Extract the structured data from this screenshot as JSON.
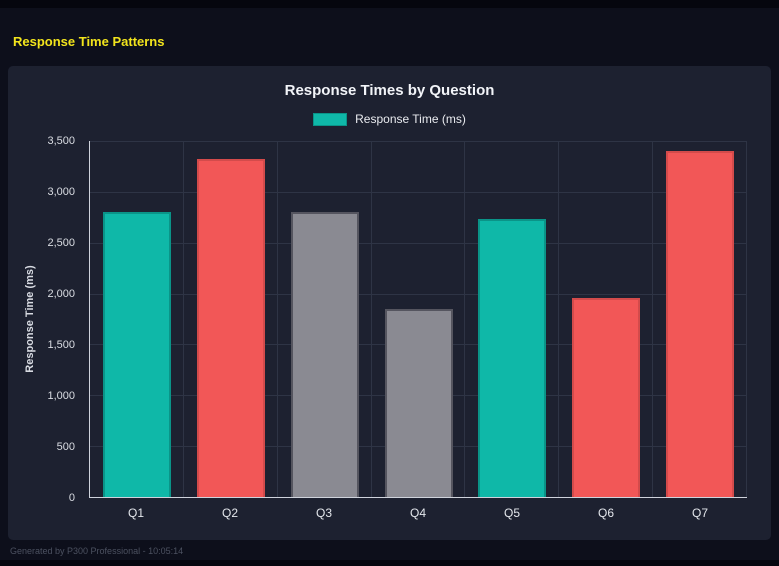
{
  "page": {
    "title": "Response Time Patterns",
    "title_color": "#f2e41c"
  },
  "footer": {
    "text": "Generated by P300 Professional - 10:05:14"
  },
  "chart_data": {
    "type": "bar",
    "title": "Response Times by Question",
    "legend_label": "Response Time (ms)",
    "legend_position": "top",
    "ylabel": "Response Time (ms)",
    "xlabel": "",
    "categories": [
      "Q1",
      "Q2",
      "Q3",
      "Q4",
      "Q5",
      "Q6",
      "Q7"
    ],
    "values": [
      2800,
      3320,
      2800,
      1850,
      2730,
      1960,
      3400
    ],
    "bar_colors": [
      "#0fb8a8",
      "#f25757",
      "#8a8a92",
      "#8a8a92",
      "#0fb8a8",
      "#f25757",
      "#f25757"
    ],
    "bar_border_colors": [
      "#0a9488",
      "#d34b4b",
      "#55555f",
      "#55555f",
      "#0a9488",
      "#d34b4b",
      "#d34b4b"
    ],
    "ylim": [
      0,
      3500
    ],
    "ytick_values": [
      0,
      500,
      1000,
      1500,
      2000,
      2500,
      3000,
      3500
    ],
    "ytick_labels": [
      "0",
      "500",
      "1,000",
      "1,500",
      "2,000",
      "2,500",
      "3,000",
      "3,500"
    ],
    "grid": true,
    "colors": {
      "teal": "#0fb8a8",
      "red": "#f25757",
      "gray": "#8a8a92",
      "panel_bg": "#1d2130",
      "page_bg": "#0d0f1b"
    }
  }
}
